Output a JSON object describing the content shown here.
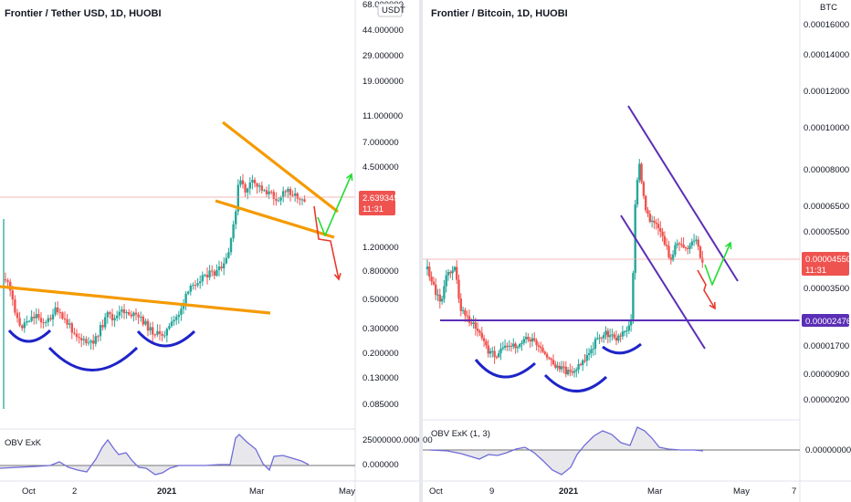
{
  "colors": {
    "up": "#26a69a",
    "down": "#ef5350",
    "wedge": "#f59a00",
    "cup": "#1e24c8",
    "channel": "#5b2fb5",
    "green_arrow": "#22dd33",
    "red_arrow": "#e8392b",
    "obv": "#6f6bd8",
    "obv_neg": "#e05555",
    "price_line": "#f2a3a3",
    "support": "#5b2fb5"
  },
  "chart_data": [
    {
      "type": "candlestick",
      "title": "Frontier / Tether USD, 1D, HUOBI",
      "currency": "USDT",
      "scale": "log",
      "y_ticks": [
        "68.000000",
        "44.000000",
        "29.000000",
        "19.000000",
        "11.000000",
        "7.000000",
        "4.500000",
        "2.639345",
        "1.200000",
        "0.800000",
        "0.500000",
        "0.300000",
        "0.200000",
        "0.130000",
        "0.085000"
      ],
      "last_price": "2.639345",
      "countdown": "11:31",
      "x_ticks": [
        "Oct",
        "2",
        "2021",
        "Mar",
        "May"
      ],
      "indicator": {
        "name": "OBV ExK",
        "y_ticks": [
          "25000000.000000",
          "0.000000"
        ]
      }
    },
    {
      "type": "candlestick",
      "title": "Frontier / Bitcoin, 1D, HUOBI",
      "currency": "BTC",
      "scale": "log",
      "y_ticks": [
        "0.00016000",
        "0.00014000",
        "0.00012000",
        "0.00010000",
        "0.00008000",
        "0.00006500",
        "0.00005500",
        "0.00004550",
        "0.00003500",
        "0.00002476",
        "0.00001700",
        "0.00000900",
        "0.00000200"
      ],
      "last_price": "0.00004550",
      "support_level": "0.00002476",
      "countdown": "11:31",
      "x_ticks": [
        "Oct",
        "9",
        "2021",
        "Mar",
        "May",
        "7"
      ],
      "indicator": {
        "name": "OBV ExK (1, 3)",
        "y_ticks": [
          "0.00000000"
        ]
      }
    }
  ]
}
